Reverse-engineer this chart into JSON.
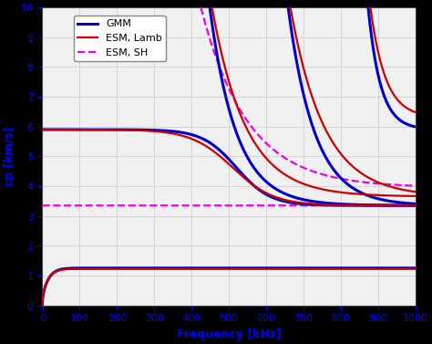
{
  "xlabel": "Frequency [kHz]",
  "ylabel": "cp [km/s]",
  "xlim": [
    0,
    1000
  ],
  "ylim": [
    0,
    10
  ],
  "xticks": [
    0,
    100,
    200,
    300,
    400,
    500,
    600,
    700,
    800,
    900,
    1000
  ],
  "yticks": [
    0,
    1,
    2,
    3,
    4,
    5,
    6,
    7,
    8,
    9,
    10
  ],
  "background_color": "#000000",
  "axes_facecolor": "#f0f0f0",
  "grid_color": "#cccccc",
  "gmm_color": "#0000cc",
  "esm_lamb_color": "#cc0000",
  "esm_sh_color": "#ee00ee",
  "gmm_linewidth": 2.2,
  "esm_lamb_linewidth": 1.6,
  "esm_sh_linewidth": 1.6,
  "cp_L": 5.9,
  "cp_S": 3.35,
  "cp_A0_asymptote": 1.25,
  "cutoff_A1": 430,
  "cutoff_S1": 640,
  "cutoff_A2": 860,
  "tick_color": "#0000ff",
  "label_color": "#0000ff",
  "tick_fontsize": 8,
  "label_fontsize": 9
}
